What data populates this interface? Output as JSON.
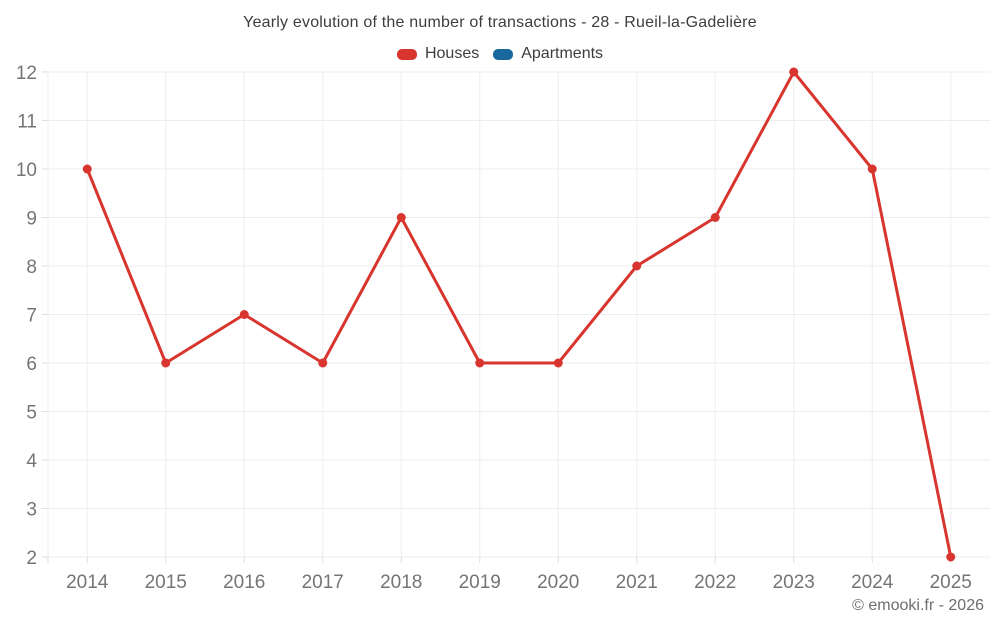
{
  "header": {
    "title": "Yearly evolution of the number of transactions - 28 - Rueil-la-Gadelière"
  },
  "legend": {
    "items": [
      {
        "label": "Houses"
      },
      {
        "label": "Apartments"
      }
    ]
  },
  "footer": {
    "credit": "© emooki.fr - 2026"
  },
  "chart_data": {
    "type": "line",
    "title": "Yearly evolution of the number of transactions - 28 - Rueil-la-Gadelière",
    "categories": [
      "2014",
      "2015",
      "2016",
      "2017",
      "2018",
      "2019",
      "2020",
      "2021",
      "2022",
      "2023",
      "2024",
      "2025"
    ],
    "series": [
      {
        "name": "Houses",
        "color": "#d8352e",
        "values": [
          10,
          6,
          7,
          6,
          9,
          6,
          6,
          8,
          9,
          12,
          10,
          2
        ]
      },
      {
        "name": "Apartments",
        "color": "#1a699e",
        "values": []
      }
    ],
    "xlabel": "",
    "ylabel": "",
    "ylim": [
      2,
      12
    ],
    "ytick_step": 1,
    "grid": true,
    "legend_position": "top",
    "colors": {
      "grid": "#ededed",
      "tick": "#dedede",
      "axis_label": "#757575",
      "title_text": "#3d3d3d",
      "footer_text": "#6e6e6e"
    }
  }
}
